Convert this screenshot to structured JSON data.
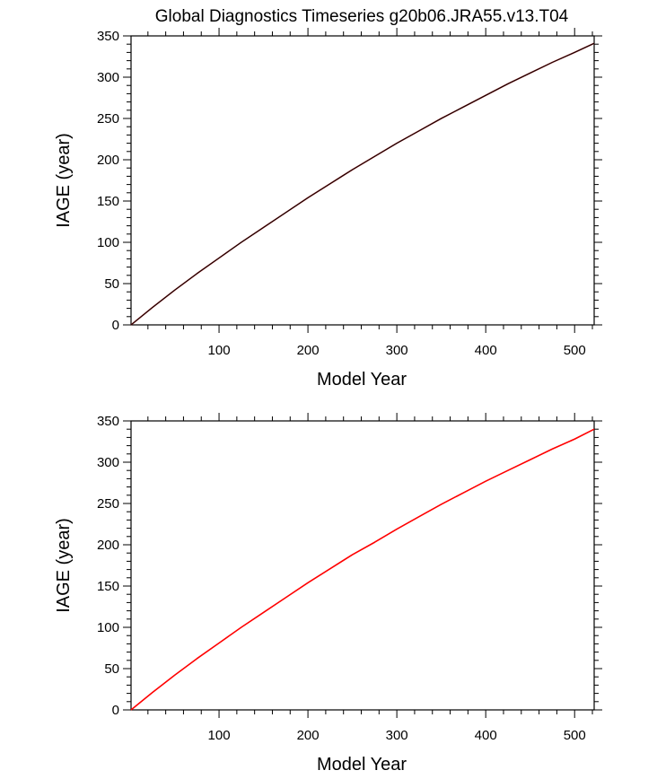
{
  "figure": {
    "title": "Global Diagnostics Timeseries g20b06.JRA55.v13.T04"
  },
  "chart_data": [
    {
      "type": "line",
      "title": "Global Diagnostics Timeseries g20b06.JRA55.v13.T04",
      "xlabel": "Model Year",
      "ylabel": "IAGE (year)",
      "xlim": [
        1,
        522
      ],
      "ylim": [
        0,
        350
      ],
      "x_ticks": [
        100,
        200,
        300,
        400,
        500
      ],
      "y_ticks": [
        0,
        50,
        100,
        150,
        200,
        250,
        300,
        350
      ],
      "grid": false,
      "series": [
        {
          "color": "#8b1a1a",
          "x": [
            1,
            25,
            50,
            75,
            100,
            125,
            150,
            175,
            200,
            225,
            250,
            275,
            300,
            325,
            350,
            375,
            400,
            425,
            450,
            475,
            500,
            522
          ],
          "y": [
            0,
            21,
            42,
            62,
            81,
            100,
            118,
            136,
            154,
            171,
            188,
            204,
            220,
            235,
            250,
            264,
            278,
            292,
            305,
            318,
            330,
            341
          ]
        },
        {
          "color": "#000000",
          "x": [
            1,
            25,
            50,
            75,
            100,
            125,
            150,
            175,
            200,
            225,
            250,
            275,
            300,
            325,
            350,
            375,
            400,
            425,
            450,
            475,
            500,
            522
          ],
          "y": [
            0,
            21,
            42,
            62,
            81,
            100,
            118,
            136,
            154,
            171,
            188,
            204,
            220,
            235,
            250,
            264,
            278,
            292,
            305,
            318,
            330,
            341
          ]
        }
      ]
    },
    {
      "type": "line",
      "xlabel": "Model Year",
      "ylabel": "IAGE (year)",
      "xlim": [
        1,
        522
      ],
      "ylim": [
        0,
        350
      ],
      "x_ticks": [
        100,
        200,
        300,
        400,
        500
      ],
      "y_ticks": [
        0,
        50,
        100,
        150,
        200,
        250,
        300,
        350
      ],
      "grid": false,
      "series": [
        {
          "color": "#ff0000",
          "x": [
            1,
            25,
            50,
            75,
            100,
            125,
            150,
            175,
            200,
            225,
            250,
            275,
            300,
            325,
            350,
            375,
            400,
            425,
            450,
            475,
            500,
            522
          ],
          "y": [
            0,
            21,
            42,
            62,
            81,
            100,
            118,
            136,
            154,
            171,
            188,
            203,
            219,
            234,
            249,
            263,
            277,
            290,
            303,
            316,
            328,
            340
          ]
        }
      ]
    }
  ]
}
